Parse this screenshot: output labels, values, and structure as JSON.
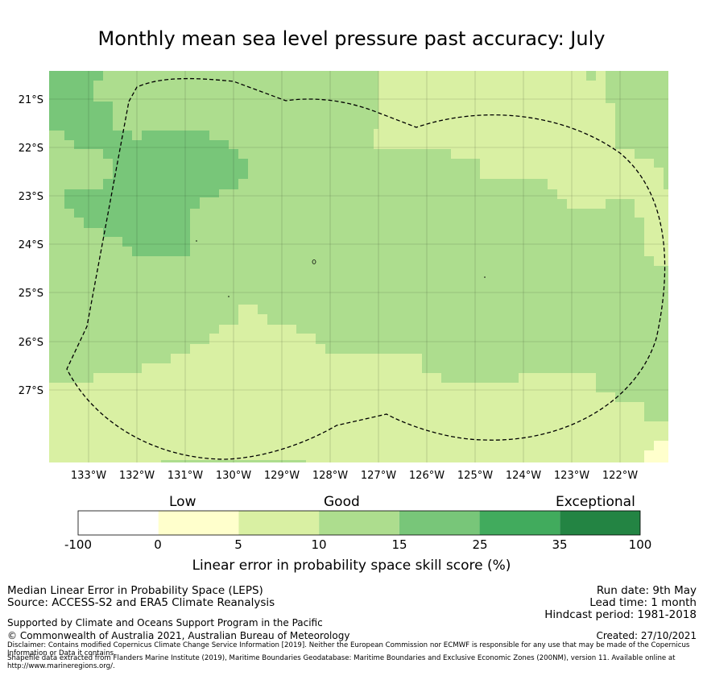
{
  "title": "Monthly mean sea level pressure past accuracy: July",
  "map": {
    "lat_labels": [
      "21°S",
      "22°S",
      "23°S",
      "24°S",
      "25°S",
      "26°S",
      "27°S"
    ],
    "lon_labels": [
      "133°W",
      "132°W",
      "131°W",
      "130°W",
      "129°W",
      "128°W",
      "127°W",
      "126°W",
      "125°W",
      "124°W",
      "123°W",
      "122°W"
    ],
    "boundary": "Exclusive Economic Zone (dashed line)"
  },
  "colorbar": {
    "categories": [
      {
        "label": "Low"
      },
      {
        "label": "Good"
      },
      {
        "label": "Exceptional"
      }
    ],
    "ticks": [
      "-100",
      "0",
      "5",
      "10",
      "15",
      "25",
      "35",
      "100"
    ],
    "colors": [
      "#ffffff",
      "#ffffcc",
      "#d9f0a3",
      "#addd8e",
      "#78c679",
      "#41ab5d",
      "#238443"
    ],
    "title": "Linear error in probability space skill score (%)"
  },
  "footer": {
    "left1": "Median Linear Error in Probability Space (LEPS)",
    "left2": "Source: ACCESS-S2 and ERA5 Climate Reanalysis",
    "right1": "Run date: 9th May",
    "right2": "Lead time: 1 month",
    "right3": "Hindcast period: 1981-2018",
    "support": "Supported by Climate and Oceans Support Program in the Pacific",
    "copyright": "© Commonwealth of Australia 2021, Australian Bureau of Meteorology",
    "created": "Created: 27/10/2021",
    "disclaimer1": "Disclaimer: Contains modified Copernicus Climate Change Service Information [2019]. Neither the European Commission nor ECMWF is responsible for any use that may be made of the Copernicus Information or Data it contains.",
    "disclaimer2": "Shapefile data extracted from Flanders Marine Institute (2019), Maritime Boundaries Geodatabase: Maritime Boundaries and Exclusive Economic Zones (200NM), version 11. Available online at http://www.marineregions.org/."
  }
}
